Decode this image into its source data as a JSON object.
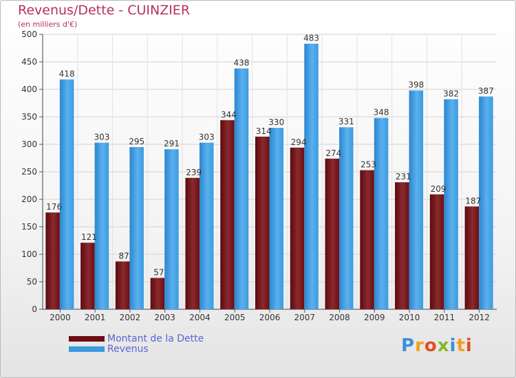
{
  "title": "Revenus/Dette - CUINZIER",
  "subtitle": "(en milliers d'€)",
  "colors": {
    "dette": "#7a1018",
    "revenus": "#3a9be0",
    "title": "#b5315f",
    "legend_text": "#5a63d6"
  },
  "legend": [
    {
      "label": "Montant de la Dette",
      "color": "#6b0d12"
    },
    {
      "label": "Revenus",
      "color": "#3a9be0"
    }
  ],
  "logo": {
    "text": "Proxiti"
  },
  "chart_data": {
    "type": "bar",
    "categories": [
      "2000",
      "2001",
      "2002",
      "2003",
      "2004",
      "2005",
      "2006",
      "2007",
      "2008",
      "2009",
      "2010",
      "2011",
      "2012"
    ],
    "series": [
      {
        "name": "Montant de la Dette",
        "values": [
          176,
          121,
          87,
          57,
          239,
          344,
          314,
          294,
          274,
          253,
          231,
          209,
          187
        ]
      },
      {
        "name": "Revenus",
        "values": [
          418,
          303,
          295,
          291,
          303,
          438,
          330,
          483,
          331,
          348,
          398,
          382,
          387
        ]
      }
    ],
    "ylim": [
      0,
      500
    ],
    "yticks": [
      0,
      50,
      100,
      150,
      200,
      250,
      300,
      350,
      400,
      450,
      500
    ],
    "grid": true,
    "legend_position": "bottom-left"
  }
}
